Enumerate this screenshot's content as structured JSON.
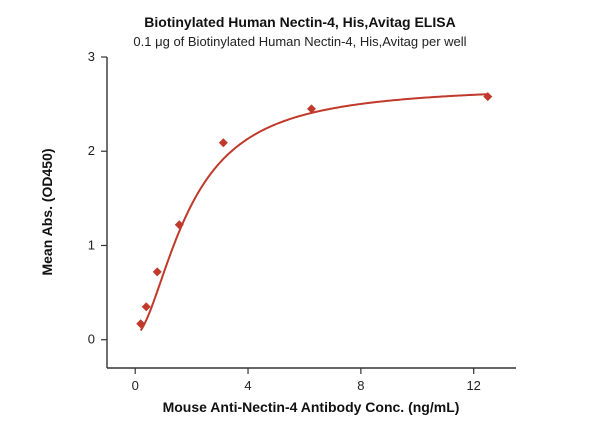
{
  "chart_data": {
    "type": "scatter",
    "title": "Biotinylated Human Nectin-4, His,Avitag ELISA",
    "subtitle": "0.1 μg of Biotinylated Human Nectin-4, His,Avitag per well",
    "xlabel": "Mouse Anti-Nectin-4 Antibody Conc. (ng/mL)",
    "ylabel": "Mean Abs. (OD450)",
    "xlim": [
      -1,
      13.5
    ],
    "ylim": [
      -0.3,
      3
    ],
    "x_ticks": [
      0,
      4,
      8,
      12
    ],
    "y_ticks": [
      0,
      1,
      2,
      3
    ],
    "grid": false,
    "marker": "diamond",
    "color": "#c0392b",
    "series": [
      {
        "x": [
          0.195,
          0.391,
          0.781,
          1.563,
          3.125,
          6.25,
          12.5
        ],
        "y": [
          0.17,
          0.35,
          0.72,
          1.22,
          2.09,
          2.45,
          2.58
        ]
      }
    ],
    "fit_curve": {
      "type": "4PL",
      "bottom": 0.05,
      "top": 2.7,
      "ec50": 1.9,
      "hill": 1.75
    }
  }
}
